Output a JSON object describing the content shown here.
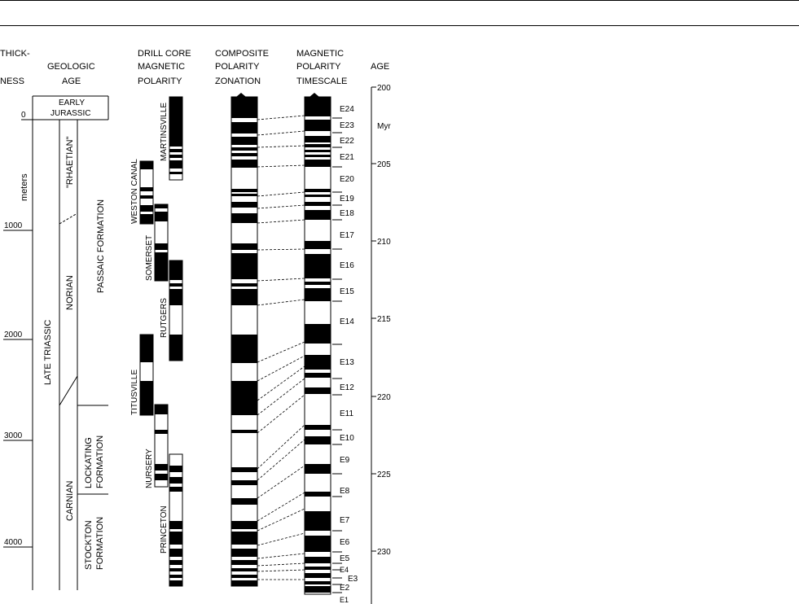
{
  "headers": {
    "thickness": [
      "THICK-",
      "NESS"
    ],
    "geologic_age": [
      "GEOLOGIC",
      "AGE"
    ],
    "drill_core": [
      "DRILL CORE",
      "MAGNETIC",
      "POLARITY"
    ],
    "composite": [
      "COMPOSITE",
      "POLARITY",
      "ZONATION"
    ],
    "timescale": [
      "MAGNETIC",
      "POLARITY",
      "TIMESCALE"
    ],
    "age": "AGE"
  },
  "thickness_axis": {
    "unit": "meters",
    "ticks": [
      {
        "value": 0,
        "label": "0"
      },
      {
        "value": 1000,
        "label": "1000"
      },
      {
        "value": 2000,
        "label": "2000"
      },
      {
        "value": 3000,
        "label": "3000"
      },
      {
        "value": 4000,
        "label": "4000"
      }
    ]
  },
  "age_axis": {
    "unit": "Myr",
    "range": [
      200,
      233
    ],
    "major": [
      {
        "value": 200,
        "label": "200"
      },
      {
        "value": 205,
        "label": "205"
      },
      {
        "value": 210,
        "label": "210"
      },
      {
        "value": 215,
        "label": "215"
      },
      {
        "value": 220,
        "label": "220"
      },
      {
        "value": 225,
        "label": "225"
      },
      {
        "value": 230,
        "label": "230"
      }
    ]
  },
  "geologic": {
    "early_jurassic": [
      "EARLY",
      "JURASSIC"
    ],
    "late_triassic": "LATE TRIASSIC",
    "rhaetian": "\"RHAETIAN\"",
    "norian": "NORIAN",
    "carnian": "CARNIAN",
    "passaic": "PASSAIC FORMATION",
    "lockatong": [
      "LOCKATING",
      "FORMATION"
    ],
    "stockton": [
      "STOCKTON",
      "FORMATION"
    ]
  },
  "cores": [
    {
      "name": "MARTINSVILLE"
    },
    {
      "name": "WESTON CANAL"
    },
    {
      "name": "SOMERSET"
    },
    {
      "name": "RUTGERS"
    },
    {
      "name": "TITUSVILLE"
    },
    {
      "name": "NURSERY"
    },
    {
      "name": "PRINCETON"
    }
  ],
  "chrons": [
    "E24",
    "E23",
    "E22",
    "E21",
    "E20",
    "E19",
    "E18",
    "E17",
    "E16",
    "E15",
    "E14",
    "E13",
    "E12",
    "E11",
    "E10",
    "E9",
    "E8",
    "E7",
    "E6",
    "E5",
    "E4",
    "E3",
    "E2",
    "E1"
  ]
}
